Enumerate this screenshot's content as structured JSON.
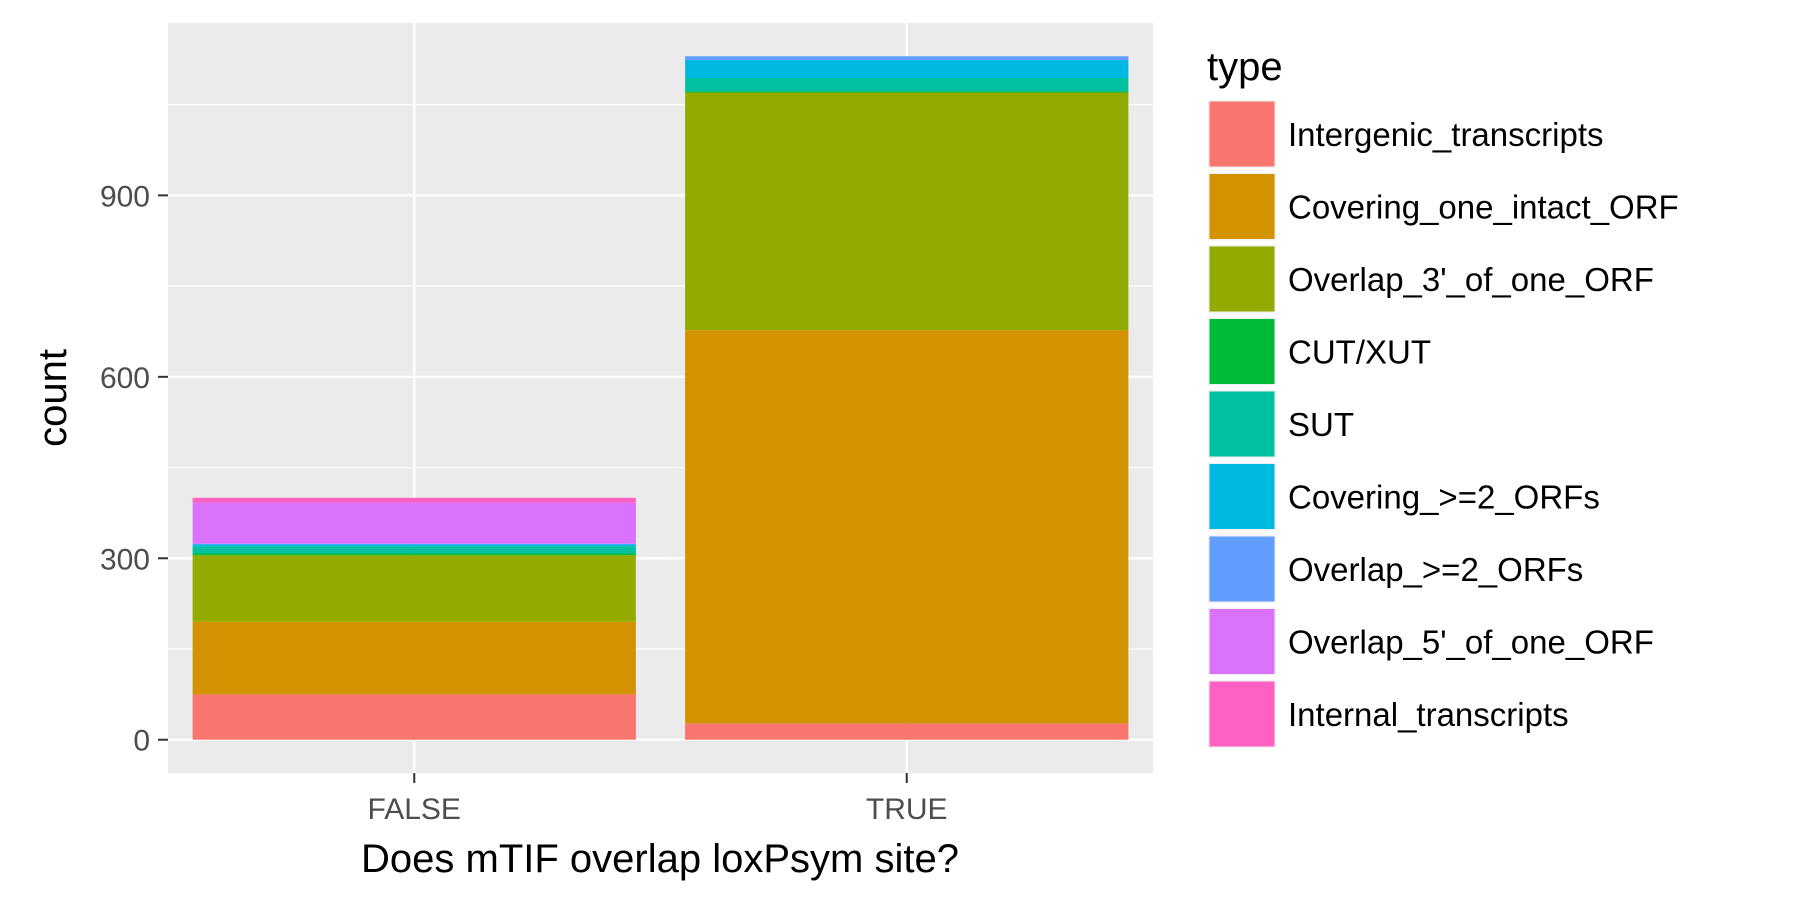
{
  "chart_data": {
    "type": "bar",
    "stacked": true,
    "categories": [
      "FALSE",
      "TRUE"
    ],
    "xlabel": "Does mTIF overlap loxPsym site?",
    "ylabel": "count",
    "ylim": [
      -55,
      1185
    ],
    "yticks": [
      0,
      300,
      600,
      900
    ],
    "grid": true,
    "legend": {
      "title": "type",
      "position": "right"
    },
    "series": [
      {
        "name": "Intergenic_transcripts",
        "color": "#F8766D",
        "values": [
          75,
          27
        ]
      },
      {
        "name": "Covering_one_intact_ORF",
        "color": "#D39200",
        "values": [
          120,
          650
        ]
      },
      {
        "name": "Overlap_3'_of_one_ORF",
        "color": "#93AA00",
        "values": [
          110,
          393
        ]
      },
      {
        "name": "CUT/XUT",
        "color": "#00BA38",
        "values": [
          3,
          2
        ]
      },
      {
        "name": "SUT",
        "color": "#00C19F",
        "values": [
          12,
          22
        ]
      },
      {
        "name": "Covering_>=2_ORFs",
        "color": "#00B9E3",
        "values": [
          3,
          30
        ]
      },
      {
        "name": "Overlap_>=2_ORFs",
        "color": "#619CFF",
        "values": [
          1,
          6
        ]
      },
      {
        "name": "Overlap_5'_of_one_ORF",
        "color": "#DB72FB",
        "values": [
          68,
          0
        ]
      },
      {
        "name": "Internal_transcripts",
        "color": "#FF61C3",
        "values": [
          8,
          0
        ]
      }
    ]
  }
}
